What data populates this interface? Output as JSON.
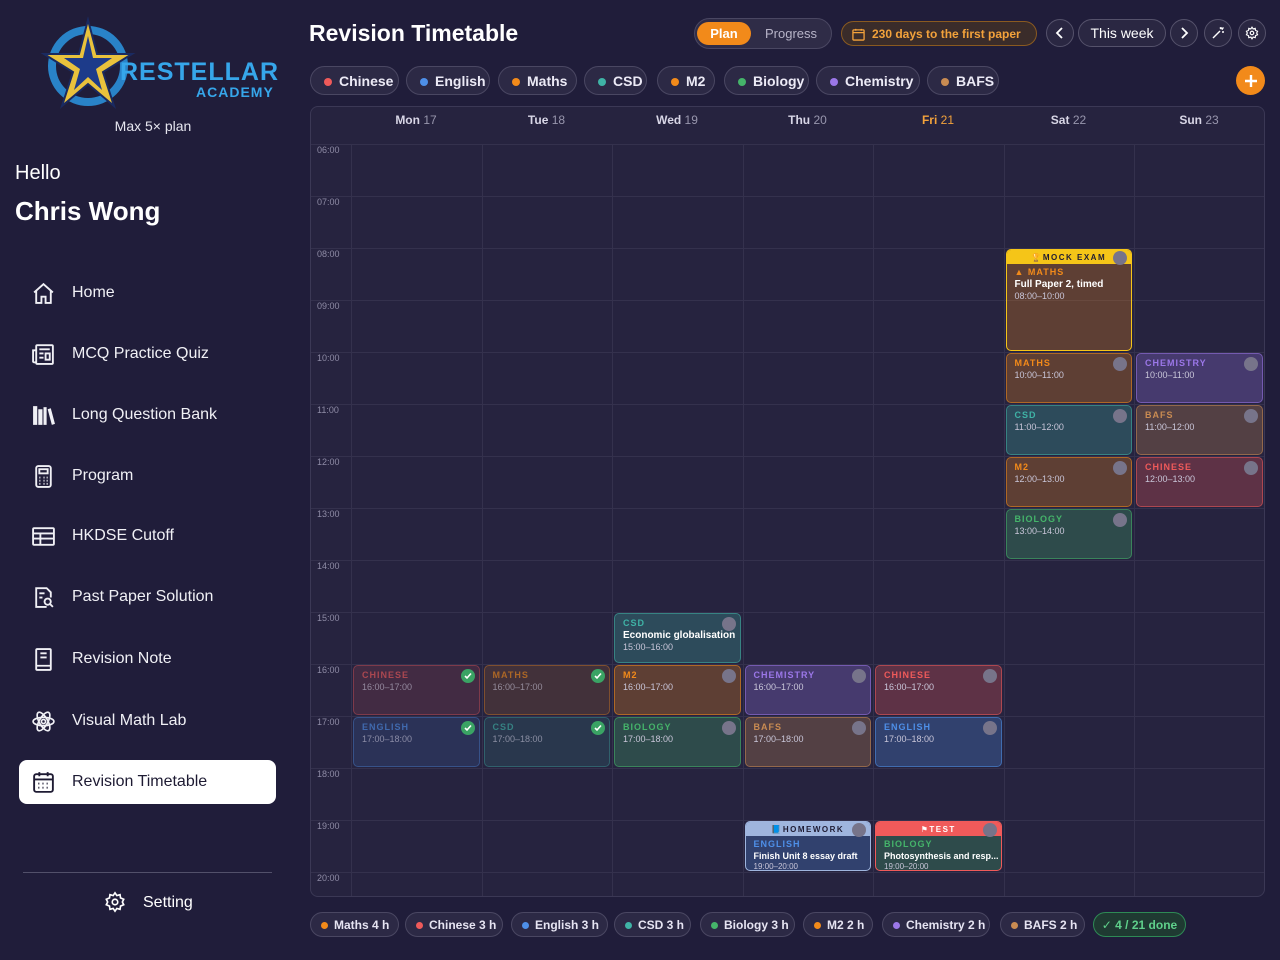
{
  "sidebar": {
    "brand_main": "RESTELLAR",
    "brand_sub": "ACADEMY",
    "plan": "Max 5× plan",
    "greeting": "Hello",
    "user_name": "Chris Wong",
    "nav": [
      {
        "label": "Home",
        "icon": "home-icon"
      },
      {
        "label": "MCQ Practice Quiz",
        "icon": "newspaper-icon"
      },
      {
        "label": "Long Question Bank",
        "icon": "books-icon"
      },
      {
        "label": "Program",
        "icon": "calculator-icon"
      },
      {
        "label": "HKDSE Cutoff",
        "icon": "table-icon"
      },
      {
        "label": "Past Paper Solution",
        "icon": "document-search-icon"
      },
      {
        "label": "Revision Note",
        "icon": "notebook-icon"
      },
      {
        "label": "Visual Math Lab",
        "icon": "atom-icon"
      },
      {
        "label": "Revision Timetable",
        "icon": "calendar-icon",
        "active": true
      }
    ],
    "setting": "Setting"
  },
  "header": {
    "title": "Revision Timetable",
    "seg_plan": "Plan",
    "seg_progress": "Progress",
    "countdown": "230 days to the first paper",
    "this_week": "This week"
  },
  "filters": [
    {
      "label": "Chinese",
      "color": "#ef5a5a"
    },
    {
      "label": "English",
      "color": "#4e8fe8"
    },
    {
      "label": "Maths",
      "color": "#f28a1a"
    },
    {
      "label": "CSD",
      "color": "#3fb3a6"
    },
    {
      "label": "M2",
      "color": "#f28a1a"
    },
    {
      "label": "Biology",
      "color": "#45b46a"
    },
    {
      "label": "Chemistry",
      "color": "#9b77e8"
    },
    {
      "label": "BAFS",
      "color": "#c98b52"
    }
  ],
  "days": [
    {
      "name": "Mon",
      "num": "17"
    },
    {
      "name": "Tue",
      "num": "18"
    },
    {
      "name": "Wed",
      "num": "19"
    },
    {
      "name": "Thu",
      "num": "20"
    },
    {
      "name": "Fri",
      "num": "21",
      "today": true
    },
    {
      "name": "Sat",
      "num": "22"
    },
    {
      "name": "Sun",
      "num": "23"
    }
  ],
  "hours": [
    "06:00",
    "07:00",
    "08:00",
    "09:00",
    "10:00",
    "11:00",
    "12:00",
    "13:00",
    "14:00",
    "15:00",
    "16:00",
    "17:00",
    "18:00",
    "19:00",
    "20:00"
  ],
  "events": [
    {
      "day": 5,
      "start": 8,
      "end": 10,
      "subject": "MATHS",
      "title": "Full Paper 2, timed",
      "time": "08:00–10:00",
      "color": "#f28a1a",
      "banner": "MOCK EXAM",
      "banner_color": "#f5c518",
      "highlight": "#f5c518"
    },
    {
      "day": 5,
      "start": 10,
      "end": 11,
      "subject": "MATHS",
      "time": "10:00–11:00",
      "color": "#f28a1a"
    },
    {
      "day": 6,
      "start": 10,
      "end": 11,
      "subject": "CHEMISTRY",
      "time": "10:00–11:00",
      "color": "#9b77e8"
    },
    {
      "day": 5,
      "start": 11,
      "end": 12,
      "subject": "CSD",
      "time": "11:00–12:00",
      "color": "#3fb3a6"
    },
    {
      "day": 6,
      "start": 11,
      "end": 12,
      "subject": "BAFS",
      "time": "11:00–12:00",
      "color": "#c98b52"
    },
    {
      "day": 5,
      "start": 12,
      "end": 13,
      "subject": "M2",
      "time": "12:00–13:00",
      "color": "#f28a1a"
    },
    {
      "day": 6,
      "start": 12,
      "end": 13,
      "subject": "CHINESE",
      "time": "12:00–13:00",
      "color": "#ef5a5a"
    },
    {
      "day": 5,
      "start": 13,
      "end": 14,
      "subject": "BIOLOGY",
      "time": "13:00–14:00",
      "color": "#45b46a"
    },
    {
      "day": 2,
      "start": 15,
      "end": 16,
      "subject": "CSD",
      "title": "Economic globalisation",
      "time": "15:00–16:00",
      "color": "#3fb3a6"
    },
    {
      "day": 0,
      "start": 16,
      "end": 17,
      "subject": "CHINESE",
      "time": "16:00–17:00",
      "color": "#ef5a5a",
      "done": true
    },
    {
      "day": 1,
      "start": 16,
      "end": 17,
      "subject": "MATHS",
      "time": "16:00–17:00",
      "color": "#f28a1a",
      "done": true
    },
    {
      "day": 2,
      "start": 16,
      "end": 17,
      "subject": "M2",
      "time": "16:00–17:00",
      "color": "#f28a1a"
    },
    {
      "day": 3,
      "start": 16,
      "end": 17,
      "subject": "CHEMISTRY",
      "time": "16:00–17:00",
      "color": "#9b77e8"
    },
    {
      "day": 4,
      "start": 16,
      "end": 17,
      "subject": "CHINESE",
      "time": "16:00–17:00",
      "color": "#ef5a5a"
    },
    {
      "day": 0,
      "start": 17,
      "end": 18,
      "subject": "ENGLISH",
      "time": "17:00–18:00",
      "color": "#4e8fe8",
      "done": true
    },
    {
      "day": 1,
      "start": 17,
      "end": 18,
      "subject": "CSD",
      "time": "17:00–18:00",
      "color": "#3fb3a6",
      "done": true
    },
    {
      "day": 2,
      "start": 17,
      "end": 18,
      "subject": "BIOLOGY",
      "time": "17:00–18:00",
      "color": "#45b46a"
    },
    {
      "day": 3,
      "start": 17,
      "end": 18,
      "subject": "BAFS",
      "time": "17:00–18:00",
      "color": "#c98b52"
    },
    {
      "day": 4,
      "start": 17,
      "end": 18,
      "subject": "ENGLISH",
      "time": "17:00–18:00",
      "color": "#4e8fe8"
    },
    {
      "day": 3,
      "start": 19,
      "end": 20,
      "subject": "ENGLISH",
      "title": "Finish Unit 8 essay draft",
      "time": "19:00–20:00",
      "color": "#4e8fe8",
      "banner": "HOMEWORK",
      "banner_color": "#9fb5de",
      "highlight": "#9fb5de"
    },
    {
      "day": 4,
      "start": 19,
      "end": 20,
      "subject": "BIOLOGY",
      "title": "Photosynthesis and resp...",
      "time": "19:00–20:00",
      "color": "#45b46a",
      "banner": "TEST",
      "banner_color": "#f05a5a",
      "highlight": "#f05a5a"
    }
  ],
  "totals": [
    {
      "label": "Maths 4 h",
      "color": "#f28a1a"
    },
    {
      "label": "Chinese 3 h",
      "color": "#ef5a5a"
    },
    {
      "label": "English 3 h",
      "color": "#4e8fe8"
    },
    {
      "label": "CSD 3 h",
      "color": "#3fb3a6"
    },
    {
      "label": "Biology 3 h",
      "color": "#45b46a"
    },
    {
      "label": "M2 2 h",
      "color": "#f28a1a"
    },
    {
      "label": "Chemistry 2 h",
      "color": "#9b77e8"
    },
    {
      "label": "BAFS 2 h",
      "color": "#c98b52"
    }
  ],
  "done_label": "✓ 4 / 21 done"
}
